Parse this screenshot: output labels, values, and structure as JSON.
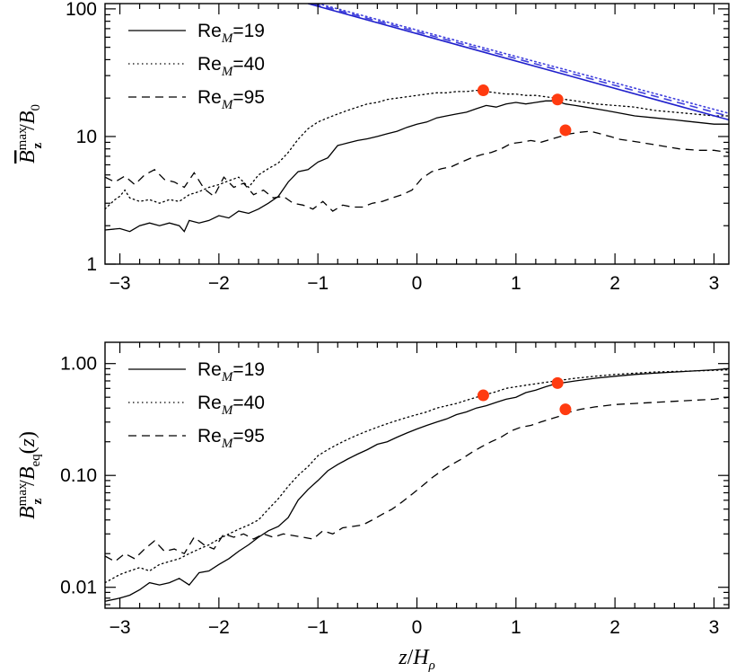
{
  "chart_data": [
    {
      "type": "line",
      "panel": "top",
      "ylabel": "B̄_z^max / B_0",
      "xlabel": "",
      "xlim": [
        -3.15,
        3.15
      ],
      "ylim": [
        1,
        110
      ],
      "yscale": "log",
      "xticks": [
        -3,
        -2,
        -1,
        0,
        1,
        2,
        3
      ],
      "xtick_labels": [
        "−3",
        "−2",
        "−1",
        "0",
        "1",
        "2",
        "3"
      ],
      "yticks": [
        1,
        10,
        100
      ],
      "ytick_labels": [
        "1",
        "10",
        "100"
      ],
      "legend": {
        "position": "top-left",
        "entries": [
          "Re_M=19",
          "Re_M=40",
          "Re_M=95"
        ]
      },
      "legend_text": {
        "re": "Re",
        "sub": "M",
        "values": [
          "=19",
          "=40",
          "=95"
        ]
      },
      "series": [
        {
          "name": "Re_M=19",
          "style": "solid",
          "color": "#000000",
          "x": [
            -3.15,
            -3.0,
            -2.9,
            -2.8,
            -2.7,
            -2.6,
            -2.5,
            -2.4,
            -2.35,
            -2.3,
            -2.2,
            -2.1,
            -2.0,
            -1.9,
            -1.8,
            -1.7,
            -1.6,
            -1.5,
            -1.4,
            -1.3,
            -1.2,
            -1.1,
            -1.0,
            -0.9,
            -0.8,
            -0.7,
            -0.6,
            -0.5,
            -0.4,
            -0.3,
            -0.2,
            -0.1,
            0.0,
            0.1,
            0.2,
            0.3,
            0.4,
            0.5,
            0.6,
            0.7,
            0.8,
            0.9,
            1.0,
            1.1,
            1.2,
            1.3,
            1.4,
            1.5,
            1.6,
            1.7,
            1.8,
            1.9,
            2.0,
            2.2,
            2.4,
            2.6,
            2.8,
            3.0,
            3.15
          ],
          "y": [
            1.85,
            1.9,
            1.8,
            2.0,
            2.1,
            2.0,
            2.1,
            2.0,
            1.8,
            2.2,
            2.1,
            2.2,
            2.4,
            2.3,
            2.6,
            2.5,
            2.7,
            3.0,
            3.4,
            4.4,
            5.3,
            5.5,
            6.3,
            6.8,
            8.5,
            8.9,
            9.3,
            9.6,
            10.0,
            10.5,
            11.0,
            11.8,
            12.5,
            13.0,
            14.0,
            14.5,
            15.0,
            15.5,
            16.5,
            17.5,
            17.0,
            18.0,
            18.5,
            18.0,
            18.5,
            19.0,
            19.0,
            18.0,
            17.5,
            17.0,
            16.5,
            16.0,
            15.5,
            14.5,
            14.0,
            13.5,
            13.0,
            12.5,
            12.5
          ]
        },
        {
          "name": "Re_M=40",
          "style": "dotted",
          "color": "#000000",
          "x": [
            -3.15,
            -3.05,
            -3.0,
            -2.95,
            -2.9,
            -2.8,
            -2.7,
            -2.6,
            -2.5,
            -2.4,
            -2.3,
            -2.2,
            -2.1,
            -2.0,
            -1.9,
            -1.8,
            -1.7,
            -1.6,
            -1.5,
            -1.4,
            -1.3,
            -1.2,
            -1.1,
            -1.0,
            -0.9,
            -0.8,
            -0.7,
            -0.6,
            -0.5,
            -0.4,
            -0.3,
            -0.2,
            -0.1,
            0.0,
            0.1,
            0.2,
            0.3,
            0.4,
            0.5,
            0.6,
            0.7,
            0.8,
            0.9,
            1.0,
            1.1,
            1.2,
            1.3,
            1.4,
            1.5,
            1.6,
            1.8,
            2.0,
            2.2,
            2.4,
            2.6,
            2.8,
            3.0,
            3.15
          ],
          "y": [
            2.7,
            3.2,
            3.4,
            3.8,
            3.3,
            3.1,
            3.2,
            3.0,
            3.2,
            3.1,
            3.5,
            3.7,
            4.0,
            4.2,
            4.5,
            4.8,
            4.0,
            5.0,
            5.6,
            6.2,
            7.5,
            9.5,
            11.5,
            13.0,
            14.0,
            15.0,
            16.0,
            17.0,
            18.0,
            18.5,
            19.5,
            20.0,
            20.5,
            21.0,
            21.5,
            22.0,
            22.0,
            22.5,
            22.5,
            23.0,
            22.5,
            22.0,
            21.5,
            21.5,
            21.0,
            21.0,
            20.5,
            20.0,
            19.5,
            19.0,
            18.0,
            17.5,
            17.0,
            16.0,
            15.5,
            15.0,
            14.5,
            14.5
          ]
        },
        {
          "name": "Re_M=95",
          "style": "dashed",
          "color": "#000000",
          "x": [
            -3.15,
            -3.05,
            -2.95,
            -2.85,
            -2.75,
            -2.65,
            -2.55,
            -2.45,
            -2.35,
            -2.25,
            -2.15,
            -2.05,
            -1.95,
            -1.85,
            -1.75,
            -1.65,
            -1.55,
            -1.45,
            -1.35,
            -1.25,
            -1.15,
            -1.05,
            -0.95,
            -0.85,
            -0.75,
            -0.65,
            -0.55,
            -0.45,
            -0.35,
            -0.25,
            -0.15,
            -0.05,
            0.05,
            0.15,
            0.25,
            0.35,
            0.45,
            0.55,
            0.65,
            0.75,
            0.85,
            0.95,
            1.05,
            1.15,
            1.25,
            1.35,
            1.45,
            1.55,
            1.65,
            1.75,
            1.85,
            1.95,
            2.05,
            2.25,
            2.45,
            2.65,
            2.85,
            3.0,
            3.15
          ],
          "y": [
            4.8,
            4.4,
            4.9,
            4.2,
            5.0,
            5.5,
            4.6,
            4.4,
            4.0,
            5.2,
            3.9,
            3.4,
            4.8,
            4.0,
            4.3,
            3.5,
            3.8,
            3.3,
            3.4,
            3.0,
            2.9,
            2.7,
            3.1,
            2.6,
            2.9,
            2.8,
            2.8,
            3.0,
            3.1,
            3.3,
            3.5,
            3.8,
            4.7,
            5.3,
            5.6,
            5.8,
            6.3,
            6.8,
            7.2,
            7.5,
            8.0,
            8.8,
            9.0,
            9.3,
            9.0,
            9.5,
            10.0,
            10.5,
            10.8,
            11.0,
            10.5,
            10.0,
            9.5,
            9.0,
            8.5,
            8.0,
            7.8,
            7.8,
            7.5
          ]
        },
        {
          "name": "",
          "style": "solid",
          "color": "#2020cc",
          "x": [
            -1.1,
            3.15
          ],
          "y": [
            110,
            13.5
          ]
        },
        {
          "name": "",
          "style": "dotted",
          "color": "#4040dd",
          "x": [
            -1.0,
            3.15
          ],
          "y": [
            110,
            15.2
          ]
        },
        {
          "name": "",
          "style": "dashed",
          "color": "#4040dd",
          "x": [
            -1.05,
            3.15
          ],
          "y": [
            110,
            14.4
          ]
        }
      ],
      "markers": {
        "color": "#ff3b10",
        "x": [
          0.67,
          1.42,
          1.5
        ],
        "y": [
          23.0,
          19.5,
          11.2
        ]
      }
    },
    {
      "type": "line",
      "panel": "bottom",
      "ylabel": "B_z^max / B_eq(z)",
      "xlabel": "z / H_ρ",
      "xlim": [
        -3.15,
        3.15
      ],
      "ylim": [
        0.0065,
        1.55
      ],
      "yscale": "log",
      "xticks": [
        -3,
        -2,
        -1,
        0,
        1,
        2,
        3
      ],
      "xtick_labels": [
        "−3",
        "−2",
        "−1",
        "0",
        "1",
        "2",
        "3"
      ],
      "yticks": [
        0.01,
        0.1,
        1
      ],
      "ytick_labels": [
        "0.01",
        "0.10",
        "1.00"
      ],
      "legend": {
        "position": "top-left",
        "entries": [
          "Re_M=19",
          "Re_M=40",
          "Re_M=95"
        ]
      },
      "legend_text": {
        "re": "Re",
        "sub": "M",
        "values": [
          "=19",
          "=40",
          "=95"
        ]
      },
      "series": [
        {
          "name": "Re_M=19",
          "style": "solid",
          "color": "#000000",
          "x": [
            -3.15,
            -3.0,
            -2.9,
            -2.8,
            -2.7,
            -2.6,
            -2.5,
            -2.4,
            -2.3,
            -2.2,
            -2.1,
            -2.0,
            -1.9,
            -1.8,
            -1.7,
            -1.6,
            -1.5,
            -1.4,
            -1.3,
            -1.2,
            -1.1,
            -1.0,
            -0.9,
            -0.8,
            -0.7,
            -0.6,
            -0.5,
            -0.4,
            -0.3,
            -0.2,
            -0.1,
            0.0,
            0.1,
            0.2,
            0.3,
            0.4,
            0.5,
            0.6,
            0.7,
            0.8,
            0.9,
            1.0,
            1.1,
            1.2,
            1.3,
            1.4,
            1.5,
            1.6,
            1.8,
            2.0,
            2.2,
            2.4,
            2.6,
            2.8,
            3.0,
            3.15
          ],
          "y": [
            0.0075,
            0.008,
            0.0085,
            0.0095,
            0.011,
            0.0105,
            0.011,
            0.012,
            0.0105,
            0.0135,
            0.014,
            0.016,
            0.018,
            0.021,
            0.024,
            0.028,
            0.032,
            0.035,
            0.042,
            0.06,
            0.075,
            0.09,
            0.11,
            0.125,
            0.14,
            0.155,
            0.17,
            0.19,
            0.2,
            0.22,
            0.24,
            0.26,
            0.28,
            0.3,
            0.32,
            0.35,
            0.37,
            0.4,
            0.42,
            0.45,
            0.48,
            0.5,
            0.55,
            0.58,
            0.62,
            0.66,
            0.68,
            0.7,
            0.74,
            0.77,
            0.8,
            0.82,
            0.84,
            0.86,
            0.88,
            0.9
          ]
        },
        {
          "name": "Re_M=40",
          "style": "dotted",
          "color": "#000000",
          "x": [
            -3.15,
            -3.0,
            -2.9,
            -2.8,
            -2.7,
            -2.6,
            -2.5,
            -2.4,
            -2.3,
            -2.2,
            -2.1,
            -2.0,
            -1.9,
            -1.8,
            -1.7,
            -1.6,
            -1.5,
            -1.4,
            -1.3,
            -1.2,
            -1.1,
            -1.0,
            -0.9,
            -0.8,
            -0.7,
            -0.6,
            -0.5,
            -0.4,
            -0.3,
            -0.2,
            -0.1,
            0.0,
            0.1,
            0.2,
            0.3,
            0.4,
            0.5,
            0.6,
            0.7,
            0.8,
            0.9,
            1.0,
            1.1,
            1.2,
            1.3,
            1.4,
            1.5,
            1.6,
            1.8,
            2.0,
            2.2,
            2.4,
            2.6,
            2.8,
            3.0,
            3.15
          ],
          "y": [
            0.011,
            0.013,
            0.014,
            0.015,
            0.014,
            0.016,
            0.017,
            0.018,
            0.02,
            0.022,
            0.024,
            0.027,
            0.03,
            0.033,
            0.036,
            0.04,
            0.05,
            0.062,
            0.08,
            0.1,
            0.12,
            0.15,
            0.17,
            0.19,
            0.21,
            0.23,
            0.25,
            0.27,
            0.29,
            0.31,
            0.33,
            0.35,
            0.37,
            0.4,
            0.42,
            0.44,
            0.47,
            0.5,
            0.53,
            0.56,
            0.6,
            0.62,
            0.64,
            0.66,
            0.68,
            0.7,
            0.72,
            0.74,
            0.77,
            0.8,
            0.82,
            0.84,
            0.85,
            0.86,
            0.87,
            0.88
          ]
        },
        {
          "name": "Re_M=95",
          "style": "dashed",
          "color": "#000000",
          "x": [
            -3.15,
            -3.05,
            -2.95,
            -2.85,
            -2.75,
            -2.65,
            -2.55,
            -2.45,
            -2.35,
            -2.25,
            -2.15,
            -2.05,
            -1.95,
            -1.85,
            -1.75,
            -1.65,
            -1.55,
            -1.45,
            -1.35,
            -1.25,
            -1.15,
            -1.05,
            -0.95,
            -0.85,
            -0.75,
            -0.65,
            -0.55,
            -0.45,
            -0.35,
            -0.25,
            -0.15,
            -0.05,
            0.05,
            0.15,
            0.25,
            0.35,
            0.45,
            0.55,
            0.65,
            0.75,
            0.85,
            0.95,
            1.05,
            1.15,
            1.25,
            1.35,
            1.45,
            1.55,
            1.65,
            1.8,
            2.0,
            2.2,
            2.4,
            2.6,
            2.8,
            3.0,
            3.15
          ],
          "y": [
            0.019,
            0.017,
            0.02,
            0.018,
            0.022,
            0.026,
            0.021,
            0.022,
            0.02,
            0.028,
            0.024,
            0.022,
            0.03,
            0.028,
            0.03,
            0.027,
            0.03,
            0.028,
            0.03,
            0.029,
            0.028,
            0.027,
            0.032,
            0.03,
            0.034,
            0.035,
            0.036,
            0.04,
            0.045,
            0.05,
            0.058,
            0.068,
            0.08,
            0.095,
            0.11,
            0.125,
            0.14,
            0.16,
            0.18,
            0.2,
            0.22,
            0.25,
            0.27,
            0.28,
            0.3,
            0.32,
            0.34,
            0.37,
            0.39,
            0.41,
            0.43,
            0.44,
            0.45,
            0.46,
            0.47,
            0.48,
            0.5
          ]
        }
      ],
      "markers": {
        "color": "#ff3b10",
        "x": [
          0.67,
          1.42,
          1.5
        ],
        "y": [
          0.52,
          0.67,
          0.39
        ]
      }
    }
  ]
}
